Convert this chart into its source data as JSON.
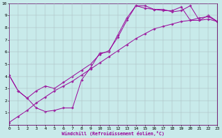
{
  "background_color": "#c8eaea",
  "line_color": "#990099",
  "grid_color": "#aabbc0",
  "xlim": [
    0,
    23
  ],
  "ylim": [
    0,
    10
  ],
  "xticks": [
    0,
    1,
    2,
    3,
    4,
    5,
    6,
    7,
    8,
    9,
    10,
    11,
    12,
    13,
    14,
    15,
    16,
    17,
    18,
    19,
    20,
    21,
    22,
    23
  ],
  "yticks": [
    1,
    2,
    3,
    4,
    5,
    6,
    7,
    8,
    9,
    10
  ],
  "xlabel": "Windchill (Refroidissement éolien,°C)",
  "line1_x": [
    0,
    1,
    2,
    3,
    4,
    5,
    6,
    7,
    8,
    9,
    10,
    11,
    12,
    13,
    14,
    15,
    16,
    17,
    18,
    19,
    20,
    21,
    22,
    23
  ],
  "line1_y": [
    4.1,
    2.8,
    2.2,
    1.4,
    1.1,
    1.2,
    1.4,
    1.4,
    3.7,
    4.7,
    5.9,
    6.0,
    7.4,
    8.8,
    9.8,
    9.8,
    9.5,
    9.5,
    9.3,
    9.4,
    9.8,
    8.6,
    9.0,
    8.5
  ],
  "line2_x": [
    0,
    1,
    2,
    3,
    4,
    5,
    6,
    7,
    8,
    9,
    10,
    11,
    12,
    13,
    14,
    15,
    16,
    17,
    18,
    19,
    20,
    21,
    22,
    23
  ],
  "line2_y": [
    0.2,
    0.7,
    1.2,
    1.8,
    2.3,
    2.8,
    3.2,
    3.6,
    4.1,
    4.6,
    5.1,
    5.6,
    6.1,
    6.6,
    7.1,
    7.5,
    7.9,
    8.1,
    8.3,
    8.5,
    8.6,
    8.6,
    8.7,
    8.5
  ],
  "line3_x": [
    0,
    1,
    2,
    3,
    4,
    5,
    6,
    7,
    8,
    9,
    10,
    11,
    12,
    13,
    14,
    15,
    16,
    17,
    18,
    19,
    20,
    21,
    22,
    23
  ],
  "line3_y": [
    4.1,
    2.8,
    2.2,
    2.8,
    3.2,
    3.0,
    3.5,
    4.0,
    4.5,
    5.0,
    5.8,
    6.1,
    7.2,
    8.6,
    9.8,
    9.6,
    9.5,
    9.4,
    9.4,
    9.7,
    8.6,
    8.8,
    8.9,
    8.5
  ]
}
